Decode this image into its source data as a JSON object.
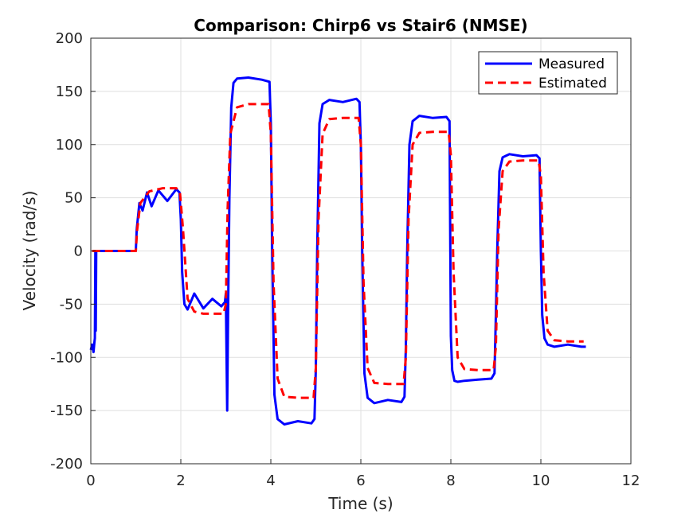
{
  "chart_data": {
    "type": "line",
    "title": "Comparison: Chirp6 vs Stair6 (NMSE)",
    "xlabel": "Time (s)",
    "ylabel": "Velocity (rad/s)",
    "xlim": [
      0,
      12
    ],
    "ylim": [
      -200,
      200
    ],
    "xticks": [
      0,
      2,
      4,
      6,
      8,
      10,
      12
    ],
    "yticks": [
      -200,
      -150,
      -100,
      -50,
      0,
      50,
      100,
      150,
      200
    ],
    "grid": true,
    "legend": "top-right",
    "series": [
      {
        "name": "Measured",
        "color": "#0000ff",
        "style": "solid",
        "x": [
          0.0,
          0.03,
          0.06,
          0.08,
          0.09,
          0.1,
          0.11,
          0.12,
          0.13,
          1.0,
          1.02,
          1.08,
          1.15,
          1.25,
          1.35,
          1.5,
          1.7,
          1.9,
          1.97,
          2.0,
          2.03,
          2.08,
          2.15,
          2.3,
          2.5,
          2.7,
          2.9,
          2.98,
          3.0,
          3.03,
          3.05,
          3.08,
          3.12,
          3.17,
          3.25,
          3.5,
          3.8,
          3.97,
          4.0,
          4.03,
          4.08,
          4.15,
          4.3,
          4.6,
          4.9,
          4.97,
          5.0,
          5.03,
          5.08,
          5.15,
          5.3,
          5.6,
          5.9,
          5.97,
          6.0,
          6.03,
          6.08,
          6.15,
          6.3,
          6.6,
          6.9,
          6.97,
          7.0,
          7.03,
          7.08,
          7.15,
          7.3,
          7.6,
          7.9,
          7.97,
          8.0,
          8.03,
          8.08,
          8.15,
          8.3,
          8.6,
          8.9,
          8.97,
          9.0,
          9.03,
          9.08,
          9.15,
          9.3,
          9.6,
          9.9,
          9.97,
          10.0,
          10.03,
          10.08,
          10.15,
          10.3,
          10.6,
          10.9,
          11.0
        ],
        "values": [
          -93,
          -88,
          -95,
          -86,
          -82,
          0,
          -75,
          0,
          0,
          0,
          20,
          45,
          38,
          55,
          42,
          57,
          47,
          58,
          55,
          30,
          -20,
          -50,
          -55,
          -40,
          -54,
          -45,
          -52,
          -48,
          -40,
          -150,
          -60,
          50,
          135,
          158,
          162,
          163,
          161,
          159,
          120,
          0,
          -135,
          -158,
          -163,
          -160,
          -162,
          -158,
          -110,
          0,
          120,
          138,
          142,
          140,
          143,
          140,
          100,
          0,
          -115,
          -138,
          -143,
          -140,
          -142,
          -137,
          -90,
          0,
          100,
          122,
          127,
          125,
          126,
          122,
          -80,
          -112,
          -122,
          -123,
          -122,
          -121,
          -120,
          -115,
          -60,
          0,
          75,
          88,
          91,
          89,
          90,
          87,
          0,
          -60,
          -82,
          -88,
          -90,
          -88,
          -90,
          -90
        ]
      },
      {
        "name": "Estimated",
        "color": "#ff0000",
        "style": "dashed",
        "x": [
          0.03,
          1.0,
          1.03,
          1.1,
          1.3,
          1.6,
          1.9,
          1.98,
          2.05,
          2.15,
          2.3,
          2.5,
          2.95,
          3.0,
          3.04,
          3.1,
          3.25,
          3.5,
          3.95,
          4.0,
          4.06,
          4.15,
          4.3,
          4.6,
          4.95,
          5.0,
          5.06,
          5.15,
          5.3,
          5.6,
          5.95,
          6.0,
          6.06,
          6.15,
          6.3,
          6.6,
          6.95,
          7.0,
          7.06,
          7.15,
          7.3,
          7.6,
          7.95,
          8.0,
          8.06,
          8.15,
          8.3,
          8.6,
          8.95,
          9.0,
          9.06,
          9.15,
          9.3,
          9.6,
          9.95,
          10.0,
          10.06,
          10.15,
          10.3,
          10.6,
          10.95
        ],
        "values": [
          0,
          0,
          20,
          45,
          56,
          59,
          59,
          55,
          20,
          -45,
          -57,
          -59,
          -59,
          -50,
          40,
          110,
          135,
          138,
          138,
          110,
          -30,
          -120,
          -137,
          -138,
          -138,
          -110,
          30,
          110,
          124,
          125,
          125,
          100,
          -30,
          -110,
          -124,
          -125,
          -125,
          -100,
          30,
          100,
          111,
          112,
          112,
          90,
          -20,
          -100,
          -111,
          -112,
          -112,
          -90,
          20,
          75,
          84,
          85,
          85,
          70,
          -20,
          -75,
          -84,
          -85,
          -85
        ]
      }
    ]
  }
}
